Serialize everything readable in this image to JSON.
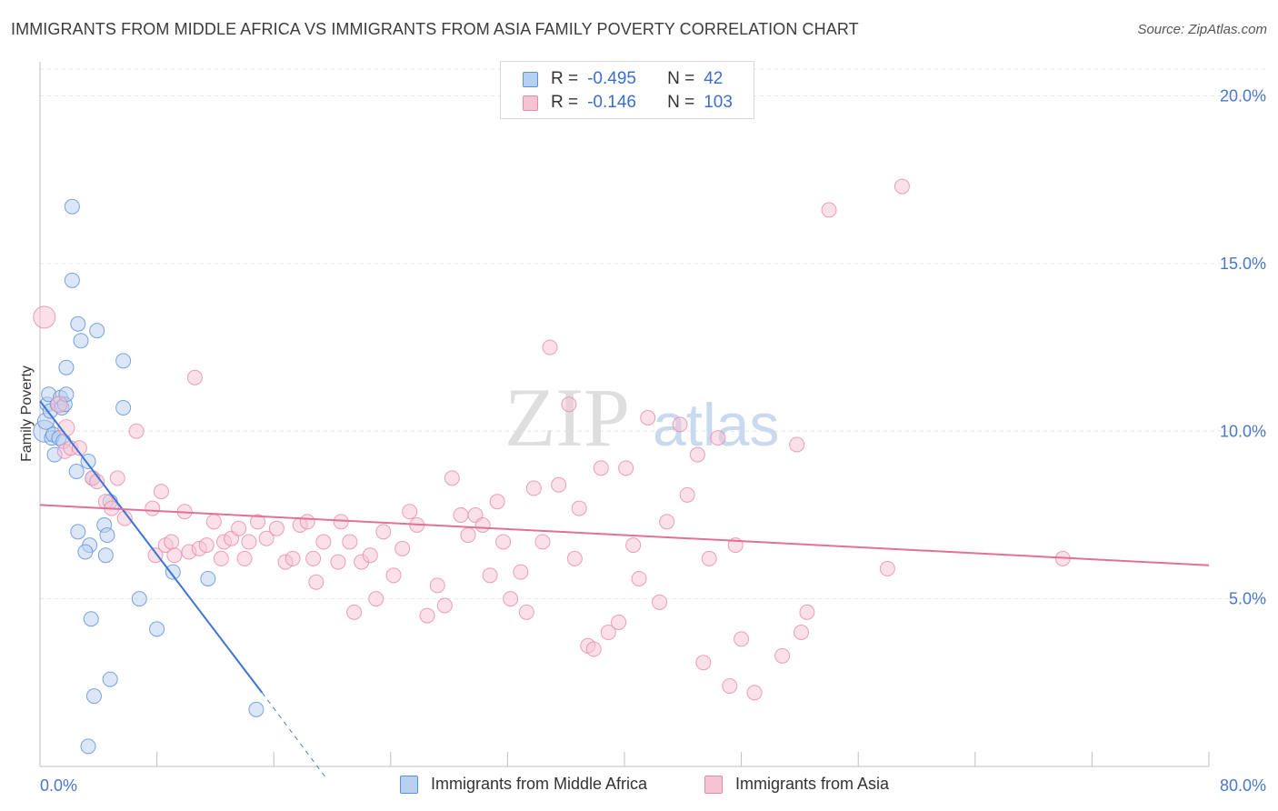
{
  "title": "IMMIGRANTS FROM MIDDLE AFRICA VS IMMIGRANTS FROM ASIA FAMILY POVERTY CORRELATION CHART",
  "source": "Source: ZipAtlas.com",
  "watermark": {
    "zip": "ZIP",
    "atlas": "atlas"
  },
  "legend": {
    "r_label": "R =",
    "n_label": "N =",
    "rows": [
      {
        "r": "-0.495",
        "n": "42",
        "color": "#5b8fd9"
      },
      {
        "r": "-0.146",
        "n": "103",
        "color": "#e889a8"
      }
    ]
  },
  "bottom_legend": {
    "series1": "Immigrants from Middle Africa",
    "series2": "Immigrants from Asia"
  },
  "chart_data": {
    "type": "scatter",
    "title": "IMMIGRANTS FROM MIDDLE AFRICA VS IMMIGRANTS FROM ASIA FAMILY POVERTY CORRELATION CHART",
    "xlabel": "",
    "ylabel": "Family Poverty",
    "xlim": [
      0,
      80
    ],
    "ylim": [
      0,
      20.8
    ],
    "x_tick_labels": [
      "0.0%",
      "80.0%"
    ],
    "y_ticks": [
      5,
      10,
      15,
      20
    ],
    "y_tick_labels": [
      "5.0%",
      "10.0%",
      "15.0%",
      "20.0%"
    ],
    "grid": true,
    "series": [
      {
        "name": "Immigrants from Middle Africa",
        "color": "#5b8fd9",
        "fill": "#b8d0f0",
        "points": [
          [
            0.3,
            10.0,
            12
          ],
          [
            0.4,
            10.3,
            9
          ],
          [
            0.5,
            10.8,
            8
          ],
          [
            0.6,
            11.1,
            8
          ],
          [
            0.7,
            10.6,
            8
          ],
          [
            0.8,
            9.8,
            8
          ],
          [
            0.9,
            9.9,
            8
          ],
          [
            1.0,
            9.3,
            8
          ],
          [
            1.2,
            10.8,
            8
          ],
          [
            1.3,
            9.8,
            8
          ],
          [
            1.4,
            11.0,
            8
          ],
          [
            1.5,
            10.7,
            8
          ],
          [
            1.6,
            9.7,
            8
          ],
          [
            1.7,
            10.8,
            8
          ],
          [
            1.8,
            11.1,
            8
          ],
          [
            1.8,
            11.9,
            8
          ],
          [
            2.2,
            16.7,
            8
          ],
          [
            2.2,
            14.5,
            8
          ],
          [
            2.6,
            13.2,
            8
          ],
          [
            2.8,
            12.7,
            8
          ],
          [
            3.9,
            13.0,
            8
          ],
          [
            5.7,
            12.1,
            8
          ],
          [
            5.7,
            10.7,
            8
          ],
          [
            2.5,
            8.8,
            8
          ],
          [
            3.3,
            9.1,
            8
          ],
          [
            3.6,
            8.6,
            8
          ],
          [
            4.8,
            7.9,
            8
          ],
          [
            2.6,
            7.0,
            8
          ],
          [
            3.4,
            6.6,
            8
          ],
          [
            3.1,
            6.4,
            8
          ],
          [
            4.4,
            7.2,
            8
          ],
          [
            4.6,
            6.9,
            8
          ],
          [
            4.5,
            6.3,
            8
          ],
          [
            9.1,
            5.8,
            8
          ],
          [
            11.5,
            5.6,
            8
          ],
          [
            6.8,
            5.0,
            8
          ],
          [
            8.0,
            4.1,
            8
          ],
          [
            3.5,
            4.4,
            8
          ],
          [
            4.8,
            2.6,
            8
          ],
          [
            3.7,
            2.1,
            8
          ],
          [
            14.8,
            1.7,
            8
          ],
          [
            3.3,
            0.6,
            8
          ]
        ],
        "trend": {
          "x0": 0.0,
          "y0": 10.9,
          "x1": 15.2,
          "y1": 2.2,
          "dash_to_x": 19.5,
          "dash_to_y": -0.3
        }
      },
      {
        "name": "Immigrants from Asia",
        "color": "#e889a8",
        "fill": "#f6c3d3",
        "points": [
          [
            0.3,
            13.4,
            12
          ],
          [
            1.3,
            10.8,
            9
          ],
          [
            1.8,
            10.1,
            9
          ],
          [
            1.7,
            9.4,
            8
          ],
          [
            2.1,
            9.5,
            8
          ],
          [
            2.7,
            9.5,
            8
          ],
          [
            3.6,
            8.6,
            8
          ],
          [
            3.9,
            8.5,
            8
          ],
          [
            4.5,
            7.9,
            8
          ],
          [
            4.9,
            7.7,
            8
          ],
          [
            5.3,
            8.6,
            8
          ],
          [
            5.8,
            7.4,
            8
          ],
          [
            6.6,
            10.0,
            8
          ],
          [
            7.7,
            7.7,
            8
          ],
          [
            7.9,
            6.3,
            8
          ],
          [
            8.3,
            8.2,
            8
          ],
          [
            8.6,
            6.6,
            8
          ],
          [
            9.0,
            6.7,
            8
          ],
          [
            9.2,
            6.3,
            8
          ],
          [
            9.9,
            7.6,
            8
          ],
          [
            10.2,
            6.4,
            8
          ],
          [
            10.6,
            11.6,
            8
          ],
          [
            10.9,
            6.5,
            8
          ],
          [
            11.4,
            6.6,
            8
          ],
          [
            11.9,
            7.3,
            8
          ],
          [
            12.4,
            6.2,
            8
          ],
          [
            12.6,
            6.7,
            8
          ],
          [
            13.1,
            6.8,
            8
          ],
          [
            13.6,
            7.1,
            8
          ],
          [
            14.0,
            6.2,
            8
          ],
          [
            14.3,
            6.7,
            8
          ],
          [
            14.9,
            7.3,
            8
          ],
          [
            15.5,
            6.8,
            8
          ],
          [
            16.2,
            7.1,
            8
          ],
          [
            16.8,
            6.1,
            8
          ],
          [
            17.3,
            6.2,
            8
          ],
          [
            17.8,
            7.2,
            8
          ],
          [
            18.7,
            6.2,
            8
          ],
          [
            18.3,
            7.3,
            8
          ],
          [
            18.9,
            5.5,
            8
          ],
          [
            19.4,
            6.7,
            8
          ],
          [
            20.4,
            6.1,
            8
          ],
          [
            20.6,
            7.3,
            8
          ],
          [
            21.2,
            6.7,
            8
          ],
          [
            21.5,
            4.6,
            8
          ],
          [
            22.0,
            6.1,
            8
          ],
          [
            22.6,
            6.3,
            8
          ],
          [
            23.0,
            5.0,
            8
          ],
          [
            23.5,
            7.0,
            8
          ],
          [
            24.2,
            5.7,
            8
          ],
          [
            24.8,
            6.5,
            8
          ],
          [
            25.3,
            7.6,
            8
          ],
          [
            25.8,
            7.2,
            8
          ],
          [
            26.5,
            4.5,
            8
          ],
          [
            27.2,
            5.4,
            8
          ],
          [
            27.7,
            4.8,
            8
          ],
          [
            28.2,
            8.6,
            8
          ],
          [
            28.8,
            7.5,
            8
          ],
          [
            29.3,
            6.9,
            8
          ],
          [
            29.8,
            7.5,
            8
          ],
          [
            30.3,
            7.2,
            8
          ],
          [
            30.8,
            5.7,
            8
          ],
          [
            31.3,
            7.9,
            8
          ],
          [
            31.7,
            6.7,
            8
          ],
          [
            32.2,
            5.0,
            8
          ],
          [
            32.9,
            5.8,
            8
          ],
          [
            33.3,
            4.6,
            8
          ],
          [
            33.8,
            8.3,
            8
          ],
          [
            34.4,
            6.7,
            8
          ],
          [
            34.9,
            12.5,
            8
          ],
          [
            35.5,
            8.4,
            8
          ],
          [
            36.2,
            10.8,
            8
          ],
          [
            36.6,
            6.2,
            8
          ],
          [
            36.9,
            7.7,
            8
          ],
          [
            37.5,
            3.6,
            8
          ],
          [
            37.9,
            3.5,
            8
          ],
          [
            38.4,
            8.9,
            8
          ],
          [
            38.9,
            4.0,
            8
          ],
          [
            39.6,
            4.3,
            8
          ],
          [
            40.1,
            8.9,
            8
          ],
          [
            40.6,
            6.6,
            8
          ],
          [
            41.0,
            5.6,
            8
          ],
          [
            41.6,
            10.4,
            8
          ],
          [
            42.4,
            4.9,
            8
          ],
          [
            42.9,
            7.3,
            8
          ],
          [
            43.8,
            10.2,
            8
          ],
          [
            44.3,
            8.1,
            8
          ],
          [
            45.0,
            9.3,
            8
          ],
          [
            45.4,
            3.1,
            8
          ],
          [
            45.8,
            6.2,
            8
          ],
          [
            46.4,
            9.8,
            8
          ],
          [
            47.2,
            2.4,
            8
          ],
          [
            47.6,
            6.6,
            8
          ],
          [
            48.0,
            3.8,
            8
          ],
          [
            48.9,
            2.2,
            8
          ],
          [
            50.8,
            3.3,
            8
          ],
          [
            52.1,
            4.0,
            8
          ],
          [
            52.5,
            4.6,
            8
          ],
          [
            51.8,
            9.6,
            8
          ],
          [
            54.0,
            16.6,
            8
          ],
          [
            58.0,
            5.9,
            8
          ],
          [
            59.0,
            17.3,
            8
          ],
          [
            70.0,
            6.2,
            8
          ]
        ],
        "trend": {
          "x0": 0.0,
          "y0": 7.8,
          "x1": 80.0,
          "y1": 6.0
        }
      }
    ]
  }
}
